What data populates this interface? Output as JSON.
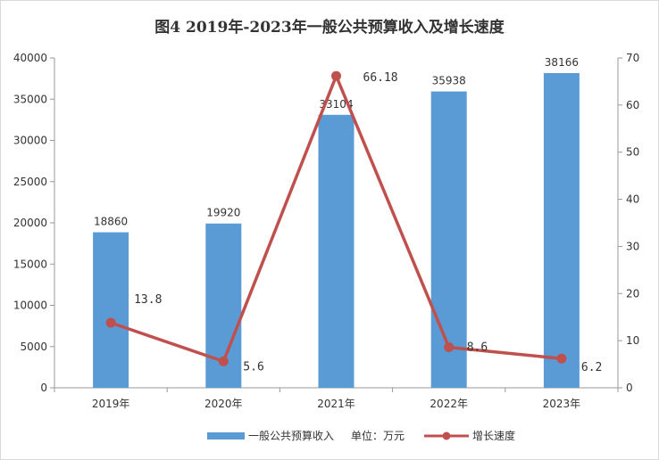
{
  "chart_data": {
    "type": "bar+line",
    "title": "图4   2019年-2023年一般公共预算收入及增长速度",
    "categories": [
      "2019年",
      "2020年",
      "2021年",
      "2022年",
      "2023年"
    ],
    "series": [
      {
        "name": "一般公共预算收入",
        "type": "bar",
        "axis": "left",
        "values": [
          18860,
          19920,
          33104,
          35938,
          38166
        ],
        "labels": [
          "18860",
          "19920",
          "33104",
          "35938",
          "38166"
        ],
        "color": "#5b9bd5"
      },
      {
        "name": "增长速度",
        "type": "line",
        "axis": "right",
        "values": [
          13.8,
          5.6,
          66.18,
          8.6,
          6.2
        ],
        "labels": [
          "13.8",
          "5.6",
          "66.18",
          "8.6",
          "6.2"
        ],
        "color": "#c0504d"
      }
    ],
    "y_left": {
      "ylim": [
        0,
        40000
      ],
      "ticks": [
        "0",
        "5000",
        "10000",
        "15000",
        "20000",
        "25000",
        "30000",
        "35000",
        "40000"
      ]
    },
    "y_right": {
      "ylim": [
        0,
        70
      ],
      "ticks": [
        "0",
        "10",
        "20",
        "30",
        "40",
        "50",
        "60",
        "70"
      ]
    },
    "unit_note": "单位：万元",
    "legend_position": "bottom",
    "grid": false
  }
}
